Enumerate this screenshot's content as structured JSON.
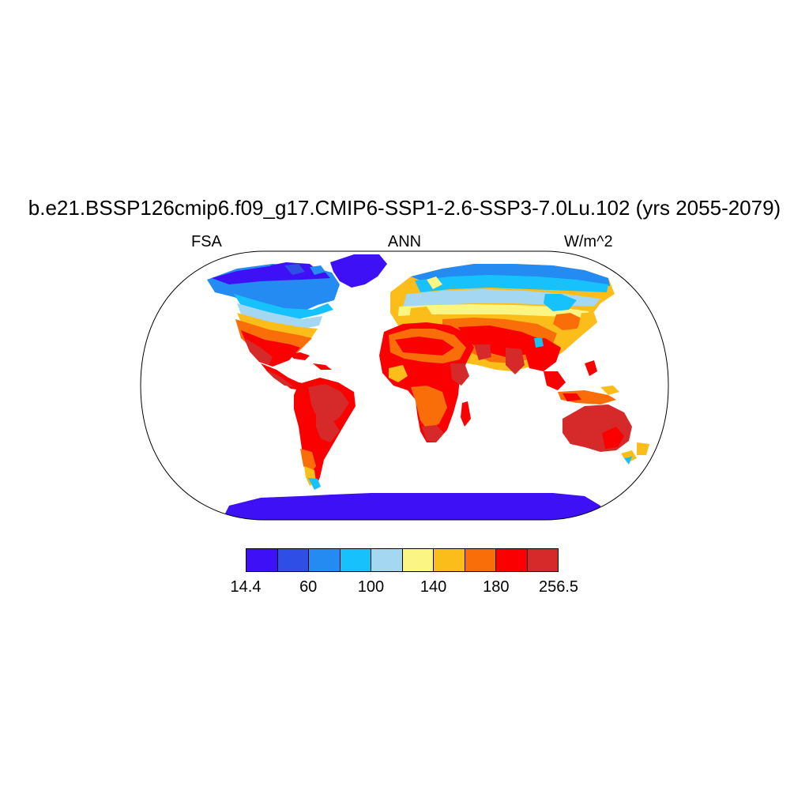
{
  "title": "b.e21.BSSP126cmip6.f09_g17.CMIP6-SSP1-2.6-SSP3-7.0Lu.102 (yrs 2055-2079)",
  "variable": "FSA",
  "season": "ANN",
  "units": "W/m^2",
  "colorbar": {
    "colors": [
      "#3e10f5",
      "#2f4ee6",
      "#238bf2",
      "#17c1fb",
      "#a4d7f2",
      "#fbf584",
      "#fbbd1a",
      "#fa6e0a",
      "#fa0000",
      "#d62a2a"
    ],
    "labels": [
      "14.4",
      "60",
      "100",
      "140",
      "180",
      "256.5"
    ]
  },
  "map": {
    "projection": "robinson",
    "ocean_color": "#ffffff",
    "coastline_color": "#000000"
  }
}
